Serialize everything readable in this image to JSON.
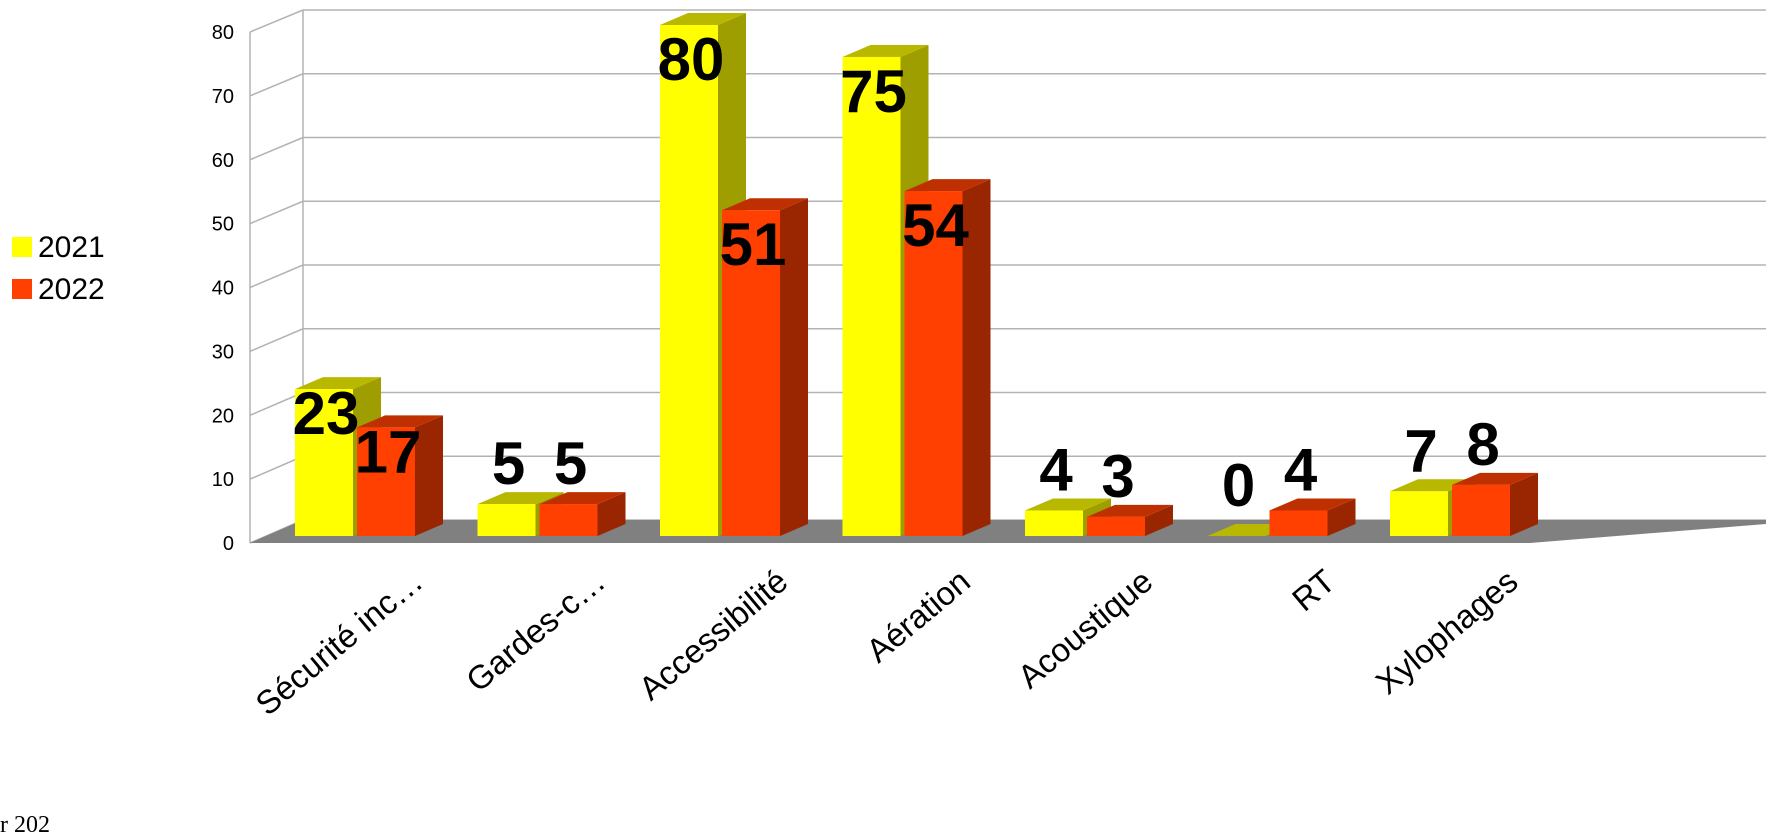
{
  "chart_data": {
    "type": "bar",
    "categories": [
      "Sécurité inc…",
      "Gardes-c…",
      "Accessibilité",
      "Aération",
      "Acoustique",
      "RT",
      "Xylophages"
    ],
    "series": [
      {
        "name": "2021",
        "values": [
          23,
          5,
          80,
          75,
          4,
          0,
          7
        ],
        "color": "#ffff00"
      },
      {
        "name": "2022",
        "values": [
          17,
          5,
          51,
          54,
          3,
          4,
          8
        ],
        "color": "#ff4000"
      }
    ],
    "yticks": [
      "0",
      "10",
      "20",
      "30",
      "40",
      "50",
      "60",
      "70",
      "80"
    ],
    "ylim": [
      0,
      80
    ],
    "grid": true,
    "legend": "left",
    "style": "3d-clustered-column"
  },
  "footer_text": "r 202"
}
